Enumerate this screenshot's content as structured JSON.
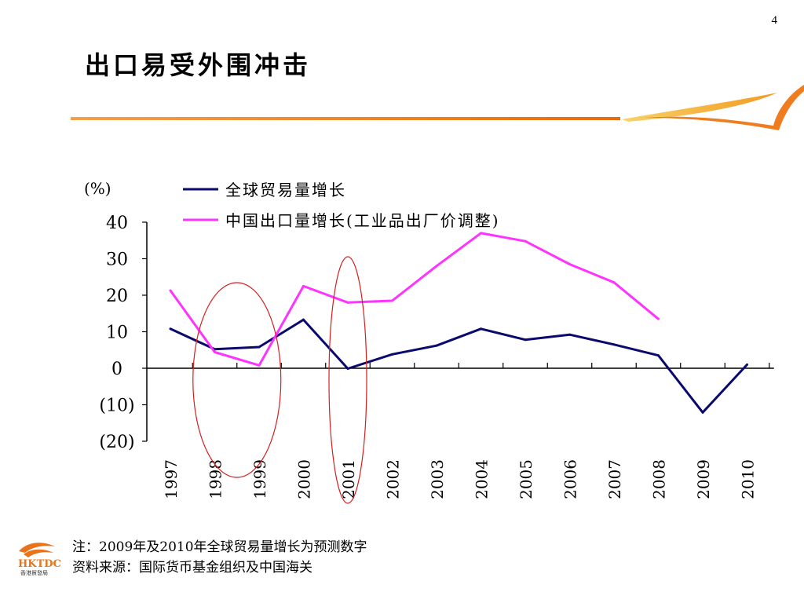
{
  "page_number": "4",
  "title": "出口易受外围冲击",
  "brand": {
    "logo_text": "HKTDC",
    "logo_subtext": "香港貿發局",
    "accent_color": "#f08a1c"
  },
  "notes": {
    "note": "注：2009年及2010年全球贸易量增长为预测数字",
    "source": "资料来源：国际货币基金组织及中国海关"
  },
  "chart_data": {
    "type": "line",
    "y_unit_label": "(%)",
    "ylim": [
      -20,
      40
    ],
    "y_ticks": [
      40,
      30,
      20,
      10,
      0,
      -10,
      -20
    ],
    "y_tick_labels": [
      "40",
      "30",
      "20",
      "10",
      "0",
      "(10)",
      "(20)"
    ],
    "categories": [
      "1997",
      "1998",
      "1999",
      "2000",
      "2001",
      "2002",
      "2003",
      "2004",
      "2005",
      "2006",
      "2007",
      "2008",
      "2009",
      "2010"
    ],
    "series": [
      {
        "name": "全球贸易量增长",
        "color": "#0a0a6e",
        "values": [
          10.8,
          5.2,
          5.8,
          13.3,
          -0.1,
          3.8,
          6.2,
          10.8,
          7.8,
          9.2,
          6.5,
          3.5,
          -12.1,
          1.0
        ]
      },
      {
        "name": "中国出口量增长(工业品出厂价调整)",
        "color": "#ff33ff",
        "values": [
          21.3,
          4.4,
          0.8,
          22.5,
          18.0,
          18.5,
          28.0,
          37.0,
          34.8,
          28.5,
          23.5,
          13.5,
          null,
          null
        ]
      }
    ],
    "highlights": [
      {
        "label": "1998-1999",
        "from": "1998",
        "to": "1999",
        "color": "#d42020"
      },
      {
        "label": "2001",
        "from": "2001",
        "to": "2001",
        "color": "#d42020"
      }
    ],
    "legend_position": "top",
    "grid": false
  }
}
